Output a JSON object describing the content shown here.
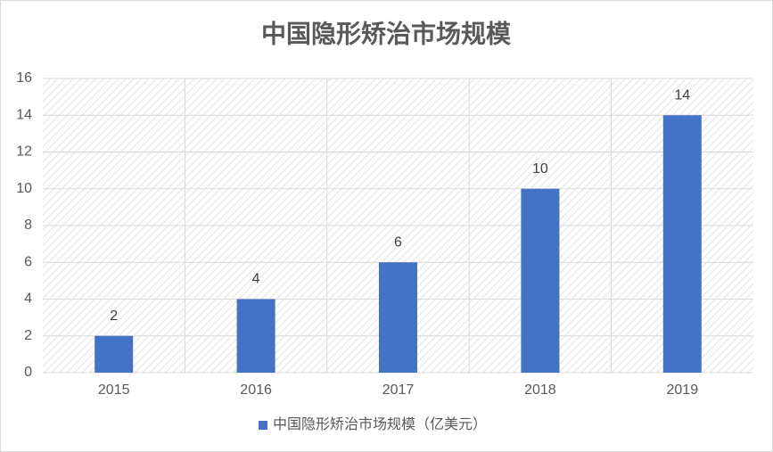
{
  "chart_data": {
    "type": "bar",
    "title": "中国隐形矫治市场规模",
    "categories": [
      "2015",
      "2016",
      "2017",
      "2018",
      "2019"
    ],
    "series": [
      {
        "name": "中国隐形矫治市场规模（亿美元）",
        "color": "#4472c4",
        "values": [
          2,
          4,
          6,
          10,
          14
        ]
      }
    ],
    "ylim": [
      0,
      16
    ],
    "yticks": [
      0,
      2,
      4,
      6,
      8,
      10,
      12,
      14,
      16
    ],
    "grid": true,
    "legend": "bottom"
  }
}
